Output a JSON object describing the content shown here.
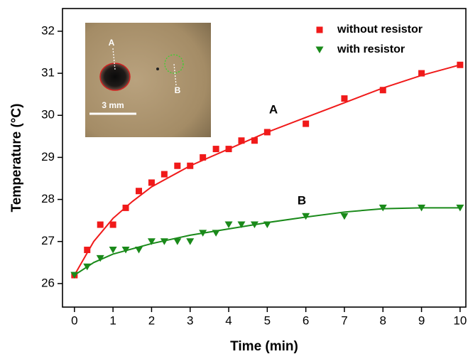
{
  "chart_data": {
    "type": "scatter",
    "x_label": "Time (min)",
    "y_label": "Temperature (°C)",
    "x": [
      0,
      0.33,
      0.67,
      1,
      1.33,
      1.67,
      2,
      2.33,
      2.67,
      3,
      3.33,
      3.67,
      4,
      4.33,
      4.67,
      5,
      6,
      7,
      8,
      9,
      10
    ],
    "series": [
      {
        "name": "without resistor",
        "color": "#f01a1a",
        "marker": "square",
        "values": [
          26.2,
          26.8,
          27.4,
          27.4,
          27.8,
          28.2,
          28.4,
          28.6,
          28.8,
          28.8,
          29.0,
          29.2,
          29.2,
          29.4,
          29.4,
          29.6,
          29.8,
          30.4,
          30.6,
          31.0,
          31.2
        ]
      },
      {
        "name": "with resistor",
        "color": "#1a8a1a",
        "marker": "triangle-down",
        "values": [
          26.2,
          26.4,
          26.6,
          26.8,
          26.8,
          26.8,
          27.0,
          27.0,
          27.0,
          27.0,
          27.2,
          27.2,
          27.4,
          27.4,
          27.4,
          27.4,
          27.6,
          27.6,
          27.8,
          27.8,
          27.8
        ]
      }
    ],
    "fit_curves": [
      {
        "color": "#f01a1a",
        "x": [
          0,
          0.5,
          1,
          1.5,
          2,
          3,
          4,
          5,
          6,
          7,
          8,
          9,
          10
        ],
        "values": [
          26.2,
          27.0,
          27.55,
          27.95,
          28.3,
          28.8,
          29.2,
          29.6,
          29.95,
          30.3,
          30.65,
          30.95,
          31.2
        ]
      },
      {
        "color": "#1a8a1a",
        "x": [
          0,
          0.5,
          1,
          2,
          3,
          4,
          5,
          6,
          7,
          8,
          9,
          10
        ],
        "values": [
          26.2,
          26.5,
          26.7,
          26.95,
          27.15,
          27.3,
          27.45,
          27.58,
          27.7,
          27.78,
          27.8,
          27.8
        ]
      }
    ],
    "annotations": [
      "A",
      "B"
    ],
    "xlim": [
      -0.31,
      10.15
    ],
    "ylim": [
      25.44,
      32.54
    ],
    "xticks": [
      0,
      1,
      2,
      3,
      4,
      5,
      6,
      7,
      8,
      9,
      10
    ],
    "yticks": [
      26,
      27,
      28,
      29,
      30,
      31,
      32
    ],
    "legend": "upper right"
  },
  "inset": {
    "labels": [
      "A",
      "B"
    ],
    "scale_bar": "3 mm"
  }
}
